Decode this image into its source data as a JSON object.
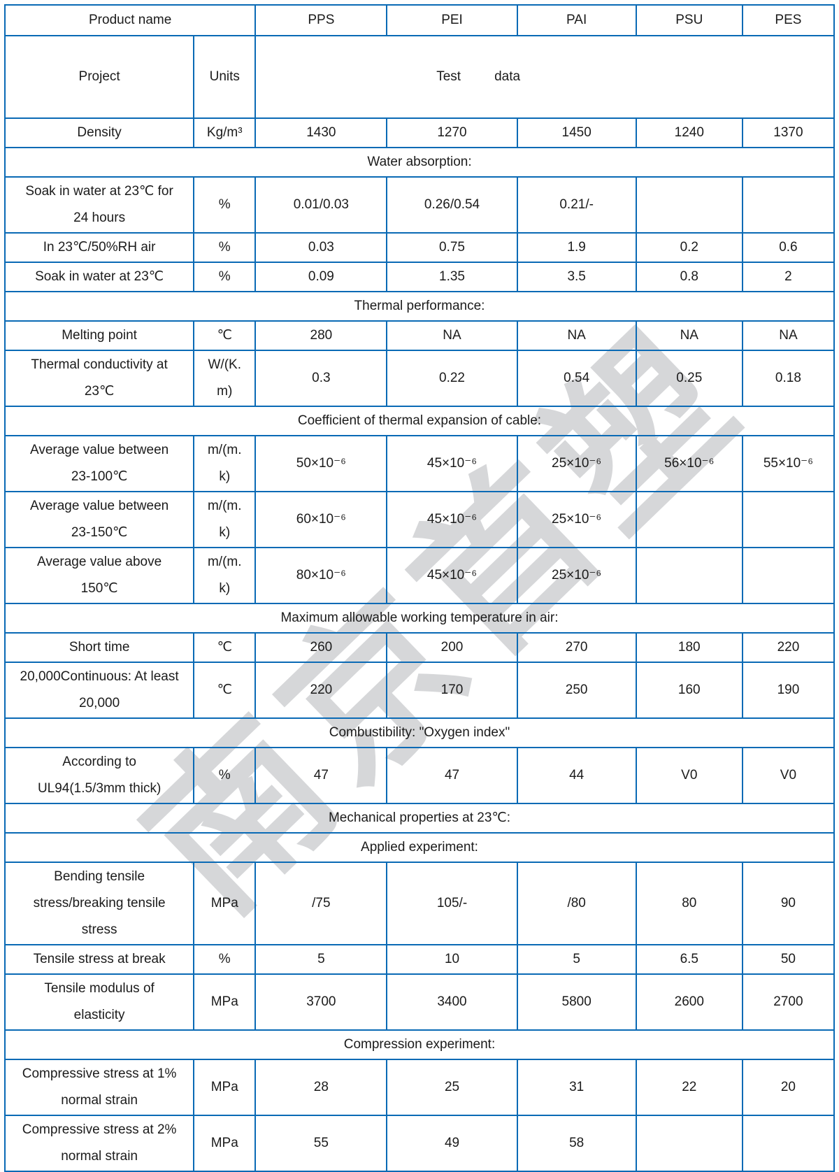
{
  "watermark": {
    "text": "南京首塑",
    "color": "#d6d7d9"
  },
  "colors": {
    "header_bg": "#0a64ae",
    "header_text": "#ffffff",
    "grid_border": "#0a6ab5",
    "body_text": "#1b1b1b"
  },
  "table": {
    "header": {
      "product_name": "Product name",
      "products": [
        "PPS",
        "PEI",
        "PAI",
        "PSU",
        "PES"
      ]
    },
    "subheader": {
      "project": "Project",
      "units": "Units",
      "test": "Test",
      "data": "data"
    },
    "rows": [
      {
        "type": "data",
        "label": "Density",
        "unit": "Kg/m³",
        "values": [
          "1430",
          "1270",
          "1450",
          "1240",
          "1370"
        ]
      },
      {
        "type": "section",
        "label": "Water absorption:"
      },
      {
        "type": "data",
        "label": "Soak in water at 23℃ for\n24 hours",
        "unit": "%",
        "values": [
          "0.01/0.03",
          "0.26/0.54",
          "0.21/-",
          "",
          ""
        ]
      },
      {
        "type": "data",
        "label": "In 23℃/50%RH air",
        "unit": "%",
        "values": [
          "0.03",
          "0.75",
          "1.9",
          "0.2",
          "0.6"
        ]
      },
      {
        "type": "data",
        "label": "Soak in water at 23℃",
        "unit": "%",
        "values": [
          "0.09",
          "1.35",
          "3.5",
          "0.8",
          "2"
        ]
      },
      {
        "type": "section",
        "label": "Thermal performance:"
      },
      {
        "type": "data",
        "label": "Melting point",
        "unit": "℃",
        "values": [
          "280",
          "NA",
          "NA",
          "NA",
          "NA"
        ]
      },
      {
        "type": "data",
        "label": "Thermal conductivity at\n23℃",
        "unit": "W/(K.\nm)",
        "values": [
          "0.3",
          "0.22",
          "0.54",
          "0.25",
          "0.18"
        ]
      },
      {
        "type": "section",
        "label": "Coefficient of thermal expansion of cable:"
      },
      {
        "type": "data",
        "label": "Average value between\n23-100℃",
        "unit": "m/(m.\nk)",
        "values": [
          "50×10⁻⁶",
          "45×10⁻⁶",
          "25×10⁻⁶",
          "56×10⁻⁶",
          "55×10⁻⁶"
        ]
      },
      {
        "type": "data",
        "label": "Average value between\n23-150℃",
        "unit": "m/(m.\nk)",
        "values": [
          "60×10⁻⁶",
          "45×10⁻⁶",
          "25×10⁻⁶",
          "",
          ""
        ]
      },
      {
        "type": "data",
        "label": "Average value above\n150℃",
        "unit": "m/(m.\nk)",
        "values": [
          "80×10⁻⁶",
          "45×10⁻⁶",
          "25×10⁻⁶",
          "",
          ""
        ]
      },
      {
        "type": "section",
        "label": "Maximum allowable working temperature in air:"
      },
      {
        "type": "data",
        "label": "Short time",
        "unit": "℃",
        "values": [
          "260",
          "200",
          "270",
          "180",
          "220"
        ]
      },
      {
        "type": "data",
        "label": "20,000Continuous: At least\n20,000",
        "unit": "℃",
        "values": [
          "220",
          "170",
          "250",
          "160",
          "190"
        ]
      },
      {
        "type": "section",
        "label": "Combustibility: \"Oxygen index\""
      },
      {
        "type": "data",
        "label": "According to\nUL94(1.5/3mm thick)",
        "unit": "%",
        "values": [
          "47",
          "47",
          "44",
          "V0",
          "V0"
        ]
      },
      {
        "type": "section",
        "label": "Mechanical properties at 23℃:"
      },
      {
        "type": "section",
        "label": "Applied experiment:"
      },
      {
        "type": "data",
        "label": "Bending tensile\nstress/breaking tensile\nstress",
        "unit": "MPa",
        "values": [
          "/75",
          "105/-",
          "/80",
          "80",
          "90"
        ]
      },
      {
        "type": "data",
        "label": "Tensile stress at break",
        "unit": "%",
        "values": [
          "5",
          "10",
          "5",
          "6.5",
          "50"
        ]
      },
      {
        "type": "data",
        "label": "Tensile modulus of\nelasticity",
        "unit": "MPa",
        "values": [
          "3700",
          "3400",
          "5800",
          "2600",
          "2700"
        ]
      },
      {
        "type": "section",
        "label": "Compression experiment:"
      },
      {
        "type": "data",
        "label": "Compressive stress at 1%\nnormal strain",
        "unit": "MPa",
        "values": [
          "28",
          "25",
          "31",
          "22",
          "20"
        ]
      },
      {
        "type": "data",
        "label": "Compressive stress at 2%\nnormal strain",
        "unit": "MPa",
        "values": [
          "55",
          "49",
          "58",
          "",
          ""
        ]
      }
    ]
  }
}
